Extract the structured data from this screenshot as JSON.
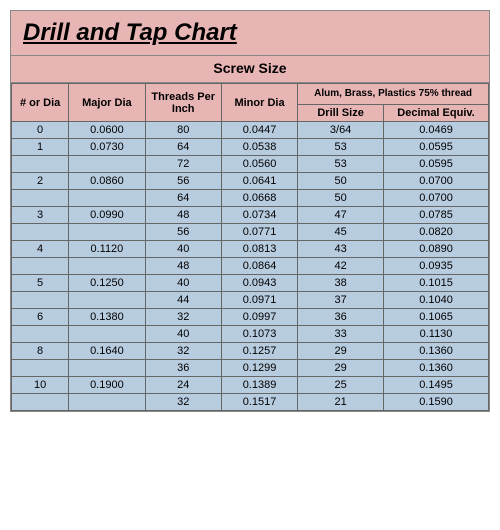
{
  "title": "Drill and Tap Chart",
  "subtitle": "Screw Size",
  "columns": {
    "num_or_dia": "# or Dia",
    "major_dia": "Major Dia",
    "threads_per_inch": "Threads Per Inch",
    "minor_dia": "Minor Dia",
    "group_header": "Alum, Brass, Plastics 75% thread",
    "drill_size": "Drill Size",
    "decimal_equiv": "Decimal Equiv."
  },
  "rows": [
    {
      "num": "0",
      "major": "0.0600",
      "tpi": "80",
      "minor": "0.0447",
      "drill": "3/64",
      "decimal": "0.0469"
    },
    {
      "num": "1",
      "major": "0.0730",
      "tpi": "64",
      "minor": "0.0538",
      "drill": "53",
      "decimal": "0.0595"
    },
    {
      "num": "",
      "major": "",
      "tpi": "72",
      "minor": "0.0560",
      "drill": "53",
      "decimal": "0.0595"
    },
    {
      "num": "2",
      "major": "0.0860",
      "tpi": "56",
      "minor": "0.0641",
      "drill": "50",
      "decimal": "0.0700"
    },
    {
      "num": "",
      "major": "",
      "tpi": "64",
      "minor": "0.0668",
      "drill": "50",
      "decimal": "0.0700"
    },
    {
      "num": "3",
      "major": "0.0990",
      "tpi": "48",
      "minor": "0.0734",
      "drill": "47",
      "decimal": "0.0785"
    },
    {
      "num": "",
      "major": "",
      "tpi": "56",
      "minor": "0.0771",
      "drill": "45",
      "decimal": "0.0820"
    },
    {
      "num": "4",
      "major": "0.1120",
      "tpi": "40",
      "minor": "0.0813",
      "drill": "43",
      "decimal": "0.0890"
    },
    {
      "num": "",
      "major": "",
      "tpi": "48",
      "minor": "0.0864",
      "drill": "42",
      "decimal": "0.0935"
    },
    {
      "num": "5",
      "major": "0.1250",
      "tpi": "40",
      "minor": "0.0943",
      "drill": "38",
      "decimal": "0.1015"
    },
    {
      "num": "",
      "major": "",
      "tpi": "44",
      "minor": "0.0971",
      "drill": "37",
      "decimal": "0.1040"
    },
    {
      "num": "6",
      "major": "0.1380",
      "tpi": "32",
      "minor": "0.0997",
      "drill": "36",
      "decimal": "0.1065"
    },
    {
      "num": "",
      "major": "",
      "tpi": "40",
      "minor": "0.1073",
      "drill": "33",
      "decimal": "0.1130"
    },
    {
      "num": "8",
      "major": "0.1640",
      "tpi": "32",
      "minor": "0.1257",
      "drill": "29",
      "decimal": "0.1360"
    },
    {
      "num": "",
      "major": "",
      "tpi": "36",
      "minor": "0.1299",
      "drill": "29",
      "decimal": "0.1360"
    },
    {
      "num": "10",
      "major": "0.1900",
      "tpi": "24",
      "minor": "0.1389",
      "drill": "25",
      "decimal": "0.1495"
    },
    {
      "num": "",
      "major": "",
      "tpi": "32",
      "minor": "0.1517",
      "drill": "21",
      "decimal": "0.1590"
    }
  ],
  "colors": {
    "header_bg": "#e8b5b5",
    "data_bg": "#b8cce0",
    "border": "#666"
  }
}
